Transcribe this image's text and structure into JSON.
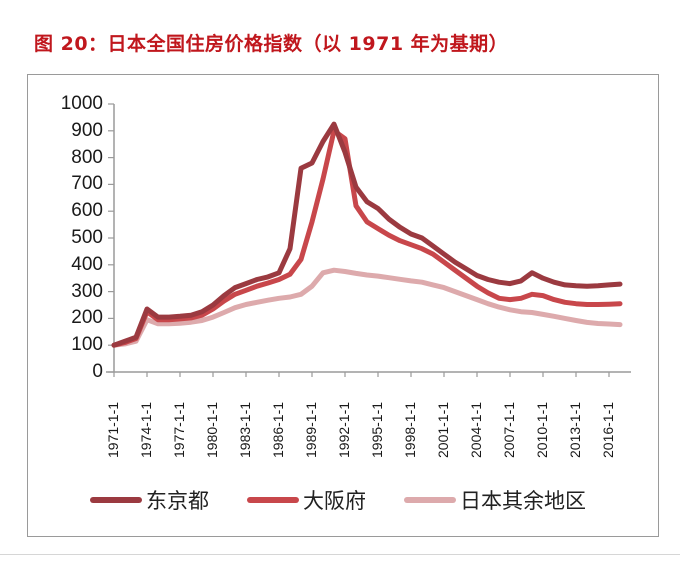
{
  "title": "图 20：日本全国住房价格指数（以 1971 年为基期）",
  "colors": {
    "title": "#c0171d",
    "tokyo": "#9b3a40",
    "osaka": "#c8474b",
    "rest": "#ddaaac"
  },
  "chart_data": {
    "type": "line",
    "title": "图 20：日本全国住房价格指数（以 1971 年为基期）",
    "xlabel": "",
    "ylabel": "",
    "ylim": [
      0,
      1000
    ],
    "yticks": [
      "0",
      "100",
      "200",
      "300",
      "400",
      "500",
      "600",
      "700",
      "800",
      "900",
      "1000"
    ],
    "xticks": [
      "1971-1-1",
      "1974-1-1",
      "1977-1-1",
      "1980-1-1",
      "1983-1-1",
      "1986-1-1",
      "1989-1-1",
      "1992-1-1",
      "1995-1-1",
      "1998-1-1",
      "2001-1-1",
      "2004-1-1",
      "2007-1-1",
      "2010-1-1",
      "2013-1-1",
      "2016-1-1"
    ],
    "grid": false,
    "legend_position": "bottom",
    "x": [
      1971,
      1972,
      1973,
      1974,
      1975,
      1976,
      1977,
      1978,
      1979,
      1980,
      1981,
      1982,
      1983,
      1984,
      1985,
      1986,
      1987,
      1988,
      1989,
      1990,
      1991,
      1992,
      1993,
      1994,
      1995,
      1996,
      1997,
      1998,
      1999,
      2000,
      2001,
      2002,
      2003,
      2004,
      2005,
      2006,
      2007,
      2008,
      2009,
      2010,
      2011,
      2012,
      2013,
      2014,
      2015,
      2016,
      2017
    ],
    "series": [
      {
        "name": "东京都",
        "values": [
          100,
          115,
          130,
          235,
          205,
          205,
          208,
          212,
          225,
          250,
          285,
          315,
          330,
          345,
          355,
          370,
          460,
          760,
          780,
          860,
          925,
          820,
          690,
          635,
          610,
          570,
          540,
          515,
          500,
          470,
          440,
          410,
          385,
          360,
          345,
          335,
          330,
          340,
          370,
          350,
          335,
          325,
          322,
          320,
          322,
          325,
          328
        ]
      },
      {
        "name": "大阪府",
        "values": [
          100,
          110,
          125,
          225,
          195,
          195,
          198,
          202,
          212,
          235,
          265,
          290,
          305,
          320,
          332,
          345,
          365,
          420,
          560,
          720,
          900,
          870,
          620,
          560,
          535,
          510,
          490,
          475,
          460,
          440,
          410,
          380,
          350,
          320,
          295,
          275,
          270,
          275,
          290,
          285,
          270,
          260,
          255,
          252,
          252,
          253,
          255
        ]
      },
      {
        "name": "日本其余地区",
        "values": [
          100,
          105,
          115,
          195,
          180,
          180,
          182,
          186,
          192,
          205,
          222,
          240,
          252,
          260,
          268,
          275,
          280,
          290,
          320,
          370,
          380,
          375,
          368,
          362,
          358,
          352,
          346,
          340,
          335,
          325,
          315,
          300,
          285,
          270,
          255,
          242,
          232,
          225,
          222,
          215,
          208,
          200,
          192,
          185,
          181,
          179,
          177
        ]
      }
    ]
  },
  "legend": [
    {
      "label": "东京都"
    },
    {
      "label": "大阪府"
    },
    {
      "label": "日本其余地区"
    }
  ]
}
